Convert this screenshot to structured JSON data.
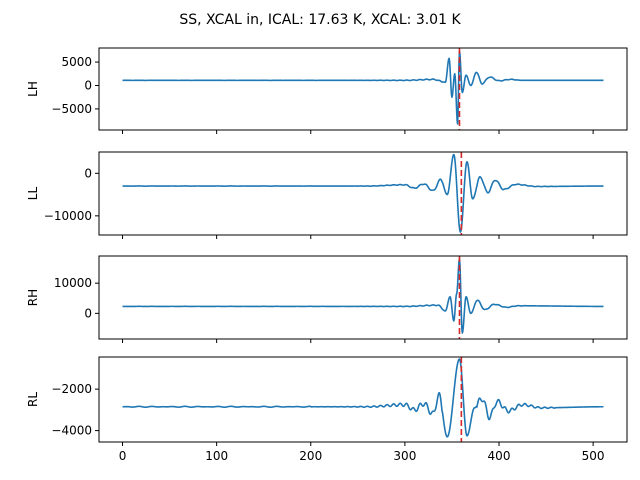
{
  "figure": {
    "title": "SS, XCAL in, ICAL: 17.63 K, XCAL: 3.01 K"
  },
  "colors": {
    "series": "#1f77b4",
    "marker": "#d62728",
    "axes": "#000000"
  },
  "chart_data": [
    {
      "type": "line",
      "ylabel": "LH",
      "xlim": [
        -25,
        536
      ],
      "ylim": [
        -9500,
        8000
      ],
      "xticks": [
        0,
        100,
        200,
        300,
        400,
        500
      ],
      "yticks": [
        -5000,
        0,
        5000
      ],
      "ytick_labels": [
        "−5000",
        "0",
        "5000"
      ],
      "show_xtick_labels": false,
      "marker_x": 358,
      "grid": false,
      "series": [
        {
          "baseline": 1100,
          "peak_x": 358,
          "ripple_start": 240,
          "ripple_end": 420,
          "keypoints": [
            [
              0,
              1100
            ],
            [
              300,
              1100
            ],
            [
              330,
              1300
            ],
            [
              343,
              700
            ],
            [
              347,
              5800
            ],
            [
              350,
              -2500
            ],
            [
              353,
              2500
            ],
            [
              356,
              -8200
            ],
            [
              358,
              7300
            ],
            [
              361,
              -1500
            ],
            [
              365,
              2200
            ],
            [
              370,
              0
            ],
            [
              376,
              2800
            ],
            [
              382,
              400
            ],
            [
              390,
              1800
            ],
            [
              400,
              1000
            ],
            [
              412,
              1300
            ],
            [
              425,
              1100
            ],
            [
              510,
              1100
            ]
          ]
        }
      ]
    },
    {
      "type": "line",
      "ylabel": "LL",
      "xlim": [
        -25,
        536
      ],
      "ylim": [
        -14500,
        5000
      ],
      "xticks": [
        0,
        100,
        200,
        300,
        400,
        500
      ],
      "yticks": [
        -10000,
        0
      ],
      "ytick_labels": [
        "−10000",
        "0"
      ],
      "show_xtick_labels": false,
      "marker_x": 360,
      "grid": false,
      "series": [
        {
          "baseline": -3000,
          "peak_x": 358,
          "ripple_start": 200,
          "ripple_end": 460,
          "keypoints": [
            [
              0,
              -3000
            ],
            [
              260,
              -3000
            ],
            [
              300,
              -2700
            ],
            [
              310,
              -3500
            ],
            [
              320,
              -2500
            ],
            [
              330,
              -4100
            ],
            [
              338,
              -1500
            ],
            [
              345,
              -5000
            ],
            [
              352,
              4400
            ],
            [
              359,
              -13800
            ],
            [
              366,
              2700
            ],
            [
              372,
              -6000
            ],
            [
              380,
              -900
            ],
            [
              388,
              -4500
            ],
            [
              396,
              -1600
            ],
            [
              405,
              -3800
            ],
            [
              418,
              -2600
            ],
            [
              440,
              -3100
            ],
            [
              510,
              -3000
            ]
          ]
        }
      ]
    },
    {
      "type": "line",
      "ylabel": "RH",
      "xlim": [
        -25,
        536
      ],
      "ylim": [
        -8500,
        19000
      ],
      "xticks": [
        0,
        100,
        200,
        300,
        400,
        500
      ],
      "yticks": [
        0,
        10000
      ],
      "ytick_labels": [
        "0",
        "10000"
      ],
      "show_xtick_labels": false,
      "marker_x": 358,
      "grid": false,
      "series": [
        {
          "baseline": 2300,
          "peak_x": 358,
          "ripple_start": 240,
          "ripple_end": 430,
          "keypoints": [
            [
              0,
              2300
            ],
            [
              300,
              2300
            ],
            [
              335,
              2700
            ],
            [
              343,
              800
            ],
            [
              348,
              5500
            ],
            [
              352,
              -2500
            ],
            [
              355,
              6500
            ],
            [
              358,
              18000
            ],
            [
              361,
              -6500
            ],
            [
              365,
              5500
            ],
            [
              370,
              0
            ],
            [
              377,
              4300
            ],
            [
              385,
              1200
            ],
            [
              395,
              3000
            ],
            [
              408,
              2000
            ],
            [
              420,
              2500
            ],
            [
              510,
              2300
            ]
          ]
        }
      ]
    },
    {
      "type": "line",
      "ylabel": "RL",
      "xlim": [
        -25,
        536
      ],
      "ylim": [
        -4550,
        -450
      ],
      "xticks": [
        0,
        100,
        200,
        300,
        400,
        500
      ],
      "yticks": [
        -4000,
        -2000
      ],
      "ytick_labels": [
        "−4000",
        "−2000"
      ],
      "show_xtick_labels": true,
      "marker_x": 360,
      "grid": false,
      "series": [
        {
          "baseline": -2850,
          "peak_x": 358,
          "ripple_start": 200,
          "ripple_end": 460,
          "keypoints": [
            [
              0,
              -2850
            ],
            [
              260,
              -2850
            ],
            [
              300,
              -2750
            ],
            [
              310,
              -3000
            ],
            [
              320,
              -2700
            ],
            [
              330,
              -3200
            ],
            [
              336,
              -2300
            ],
            [
              345,
              -4300
            ],
            [
              358,
              -550
            ],
            [
              366,
              -4250
            ],
            [
              374,
              -2900
            ],
            [
              382,
              -2450
            ],
            [
              390,
              -3350
            ],
            [
              398,
              -2600
            ],
            [
              410,
              -3050
            ],
            [
              425,
              -2750
            ],
            [
              445,
              -2900
            ],
            [
              510,
              -2850
            ]
          ]
        }
      ]
    }
  ]
}
